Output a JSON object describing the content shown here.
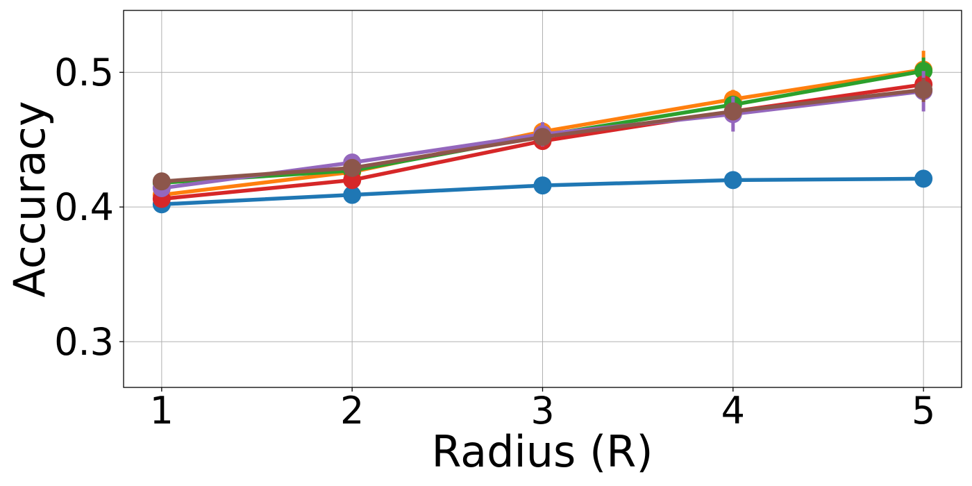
{
  "chart_data": {
    "type": "line",
    "title": "",
    "xlabel": "Radius (R)",
    "ylabel": "Accuracy",
    "xlim": [
      0.8,
      5.2
    ],
    "ylim": [
      0.266,
      0.546
    ],
    "x": [
      1,
      2,
      3,
      4,
      5
    ],
    "xticks": [
      1,
      2,
      3,
      4,
      5
    ],
    "xtick_labels": [
      "1",
      "2",
      "3",
      "4",
      "5"
    ],
    "yticks": [
      0.3,
      0.4,
      0.5
    ],
    "ytick_labels": [
      "0.3",
      "0.4",
      "0.5"
    ],
    "grid": true,
    "legend": false,
    "series": [
      {
        "color": "#1f77b4",
        "values": [
          0.402,
          0.409,
          0.416,
          0.42,
          0.421
        ],
        "err": [
          0.001,
          0.001,
          0.002,
          0.002,
          0.002
        ]
      },
      {
        "color": "#ff7f0e",
        "values": [
          0.409,
          0.426,
          0.456,
          0.48,
          0.502
        ],
        "err": [
          0.002,
          0.003,
          0.004,
          0.007,
          0.014
        ]
      },
      {
        "color": "#2ca02c",
        "values": [
          0.418,
          0.427,
          0.453,
          0.476,
          0.501
        ],
        "err": [
          0.002,
          0.003,
          0.004,
          0.006,
          0.01
        ]
      },
      {
        "color": "#d62728",
        "values": [
          0.406,
          0.42,
          0.449,
          0.471,
          0.491
        ],
        "err": [
          0.002,
          0.003,
          0.004,
          0.005,
          0.007
        ]
      },
      {
        "color": "#9467bd",
        "values": [
          0.414,
          0.433,
          0.454,
          0.469,
          0.486
        ],
        "err": [
          0.002,
          0.003,
          0.009,
          0.013,
          0.015
        ]
      },
      {
        "color": "#8c564b",
        "values": [
          0.419,
          0.429,
          0.452,
          0.471,
          0.487
        ],
        "err": [
          0.002,
          0.003,
          0.004,
          0.006,
          0.009
        ]
      }
    ]
  }
}
